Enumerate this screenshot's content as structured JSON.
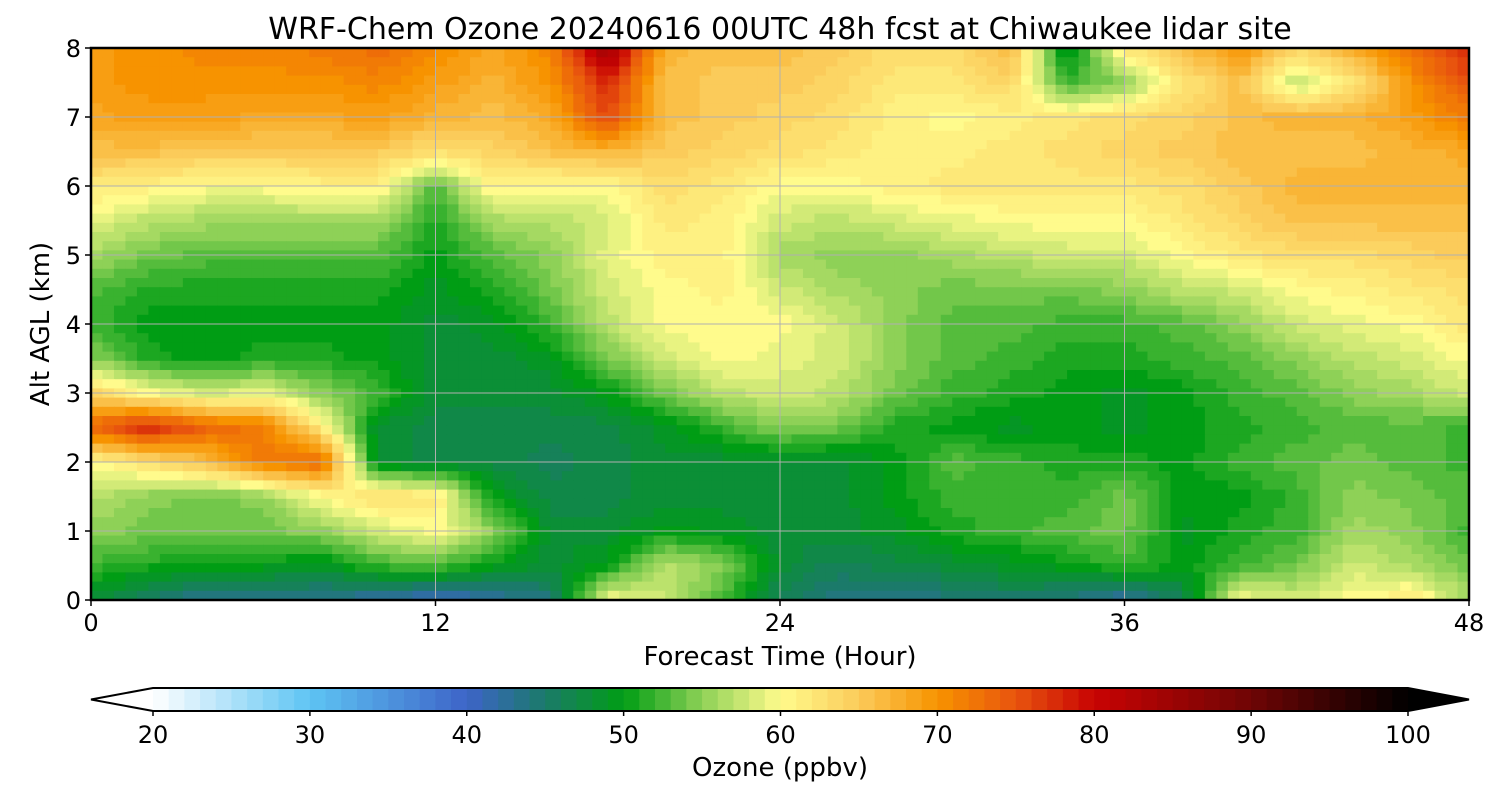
{
  "chart_data": {
    "type": "heatmap",
    "title": "WRF-Chem Ozone  20240616 00UTC 48h fcst at Chiwaukee lidar site",
    "xlabel": "Forecast Time (Hour)",
    "ylabel": "Alt AGL (km)",
    "x_ticks": [
      "0",
      "12",
      "24",
      "36",
      "48"
    ],
    "y_ticks": [
      "0",
      "1",
      "2",
      "3",
      "4",
      "5",
      "6",
      "7",
      "8"
    ],
    "xlim": [
      0,
      48
    ],
    "ylim": [
      0,
      8
    ],
    "grid": true,
    "x_hours": [
      0,
      2,
      4,
      6,
      8,
      10,
      12,
      14,
      16,
      18,
      20,
      22,
      24,
      26,
      28,
      30,
      32,
      34,
      36,
      38,
      40,
      42,
      44,
      46,
      48
    ],
    "y_km": [
      0,
      0.5,
      1,
      1.5,
      2,
      2.5,
      3,
      3.5,
      4,
      4.5,
      5,
      5.5,
      6,
      6.5,
      7,
      7.5,
      8
    ],
    "ozone_ppbv": [
      [
        48,
        45,
        43,
        43,
        43,
        42,
        40,
        42,
        44,
        60,
        58,
        52,
        46,
        44,
        44,
        44,
        45,
        44,
        42,
        46,
        60,
        58,
        60,
        62,
        56
      ],
      [
        52,
        51,
        50,
        50,
        49,
        52,
        53,
        50,
        48,
        50,
        57,
        55,
        48,
        46,
        47,
        48,
        49,
        50,
        52,
        50,
        52,
        54,
        58,
        56,
        54
      ],
      [
        55,
        54,
        54,
        54,
        55,
        58,
        60,
        55,
        48,
        48,
        50,
        49,
        48,
        48,
        49,
        51,
        52,
        53,
        54,
        49,
        51,
        52,
        56,
        55,
        52
      ],
      [
        57,
        55,
        54,
        55,
        60,
        63,
        62,
        50,
        47,
        47,
        48,
        48,
        48,
        48,
        50,
        52,
        52,
        52,
        54,
        50,
        50,
        52,
        55,
        54,
        53
      ],
      [
        60,
        63,
        66,
        72,
        74,
        48,
        47,
        47,
        46,
        47,
        48,
        48,
        48,
        48,
        50,
        53,
        52,
        51,
        51,
        50,
        52,
        53,
        54,
        53,
        52
      ],
      [
        74,
        78,
        74,
        72,
        62,
        48,
        47,
        47,
        47,
        47,
        49,
        52,
        55,
        54,
        51,
        50,
        49,
        50,
        49,
        50,
        51,
        52,
        53,
        53,
        52
      ],
      [
        64,
        60,
        58,
        59,
        55,
        52,
        48,
        48,
        48,
        50,
        54,
        57,
        58,
        57,
        54,
        52,
        51,
        50,
        49,
        50,
        52,
        53,
        55,
        56,
        58
      ],
      [
        55,
        51,
        50,
        51,
        51,
        50,
        48,
        48,
        49,
        54,
        58,
        60,
        59,
        58,
        55,
        53,
        52,
        51,
        51,
        52,
        53,
        55,
        57,
        58,
        60
      ],
      [
        52,
        50,
        50,
        50,
        50,
        50,
        48,
        49,
        52,
        57,
        60,
        60,
        60,
        58,
        55,
        53,
        53,
        52,
        52,
        53,
        55,
        58,
        59,
        60,
        62
      ],
      [
        53,
        51,
        51,
        51,
        51,
        51,
        49,
        51,
        54,
        58,
        60,
        61,
        58,
        56,
        55,
        54,
        54,
        54,
        55,
        57,
        58,
        60,
        61,
        62,
        63
      ],
      [
        56,
        54,
        53,
        53,
        53,
        53,
        50,
        53,
        55,
        59,
        61,
        61,
        56,
        55,
        55,
        56,
        57,
        58,
        58,
        60,
        62,
        63,
        63,
        64,
        65
      ],
      [
        59,
        57,
        56,
        56,
        56,
        56,
        51,
        56,
        57,
        58,
        62,
        61,
        58,
        57,
        58,
        59,
        60,
        60,
        60,
        62,
        64,
        66,
        66,
        66,
        66
      ],
      [
        62,
        61,
        60,
        60,
        61,
        61,
        53,
        61,
        60,
        60,
        63,
        62,
        60,
        60,
        61,
        62,
        62,
        62,
        62,
        63,
        65,
        67,
        67,
        67,
        67
      ],
      [
        66,
        66,
        65,
        65,
        65,
        65,
        63,
        64,
        66,
        67,
        65,
        64,
        63,
        62,
        61,
        61,
        62,
        63,
        64,
        65,
        66,
        66,
        66,
        67,
        68
      ],
      [
        68,
        69,
        69,
        68,
        68,
        69,
        67,
        66,
        68,
        76,
        66,
        65,
        64,
        63,
        61,
        60,
        61,
        62,
        63,
        64,
        66,
        67,
        67,
        69,
        72
      ],
      [
        69,
        70,
        70,
        70,
        70,
        71,
        69,
        67,
        70,
        78,
        66,
        65,
        65,
        64,
        62,
        62,
        64,
        52,
        55,
        62,
        66,
        57,
        62,
        70,
        75
      ],
      [
        69,
        70,
        71,
        71,
        72,
        73,
        71,
        68,
        71,
        85,
        67,
        66,
        66,
        65,
        63,
        63,
        67,
        48,
        62,
        66,
        70,
        64,
        68,
        73,
        78
      ]
    ],
    "colorbar": {
      "label": "Ozone  (ppbv)",
      "ticks": [
        "20",
        "30",
        "40",
        "50",
        "60",
        "70",
        "80",
        "90",
        "100"
      ],
      "range": [
        20,
        100
      ],
      "extend": "both",
      "orientation": "horizontal",
      "placement": "bottom"
    },
    "colormap": {
      "stops": [
        [
          20,
          "#ffffff"
        ],
        [
          30,
          "#5ec4f3"
        ],
        [
          40,
          "#3d64c8"
        ],
        [
          45,
          "#1b7a6a"
        ],
        [
          50,
          "#009d14"
        ],
        [
          55,
          "#8ed157"
        ],
        [
          60,
          "#fffb8c"
        ],
        [
          65,
          "#fbcb5a"
        ],
        [
          70,
          "#f79300"
        ],
        [
          75,
          "#e8540e"
        ],
        [
          80,
          "#c80303"
        ],
        [
          90,
          "#6f0505"
        ],
        [
          100,
          "#000000"
        ]
      ]
    }
  }
}
